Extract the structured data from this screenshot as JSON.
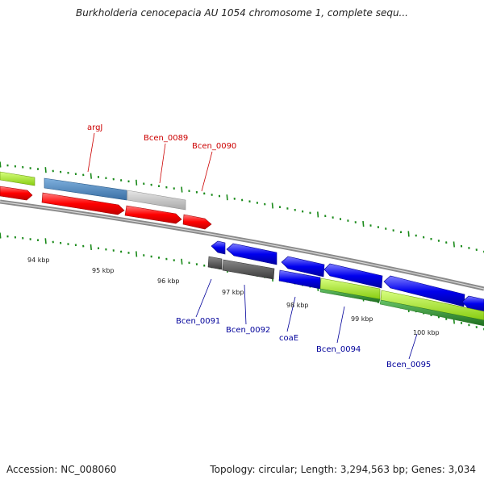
{
  "title": "Burkholderia cenocepacia AU 1054 chromosome 1, complete sequ...",
  "footer": {
    "accession": "Accession: NC_008060",
    "summary": "Topology: circular; Length: 3,294,563 bp; Genes: 3,034"
  },
  "kbp_labels": [
    "94 kbp",
    "95 kbp",
    "96 kbp",
    "97 kbp",
    "98 kbp",
    "99 kbp",
    "100 kbp"
  ],
  "top_gene_labels": [
    {
      "text": "argJ",
      "color": "#cc0000"
    },
    {
      "text": "Bcen_0089",
      "color": "#cc0000"
    },
    {
      "text": "Bcen_0090",
      "color": "#cc0000"
    }
  ],
  "bottom_gene_labels": [
    {
      "text": "Bcen_0091",
      "color": "#00009a"
    },
    {
      "text": "Bcen_0092",
      "color": "#00009a"
    },
    {
      "text": "coaE",
      "color": "#00009a"
    },
    {
      "text": "Bcen_0094",
      "color": "#00009a"
    },
    {
      "text": "Bcen_0095",
      "color": "#00009a"
    }
  ],
  "colors": {
    "forward_cds": "#ff0000",
    "reverse_cds": "#0000ee",
    "gene_blue": "#4a86bf",
    "gene_grey": "#bcbcbc",
    "gene_darkgrey": "#555555",
    "gene_lime": "#aaee22",
    "gene_green": "#2f8f2f",
    "backbone": "#8a8a8a",
    "ticks": "#1a8a1a"
  }
}
